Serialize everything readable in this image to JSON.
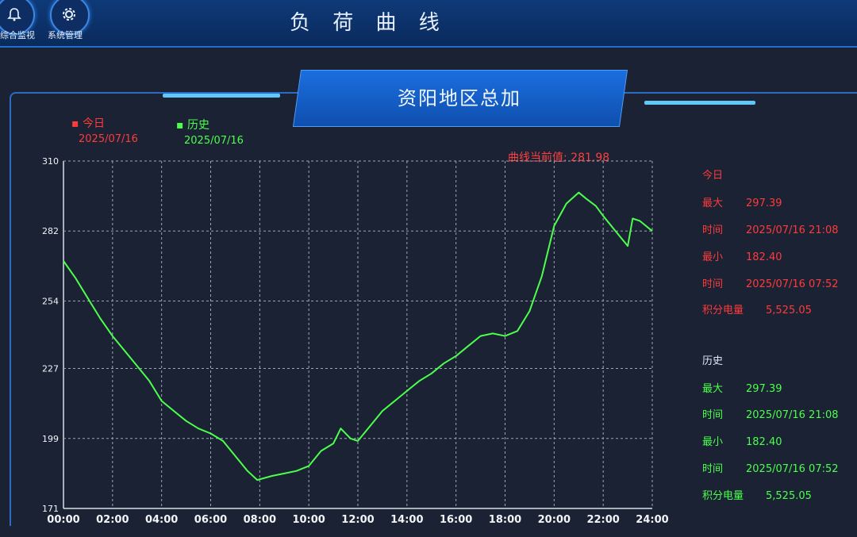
{
  "nav": {
    "items": [
      {
        "label": "综合监视",
        "icon": "bell-icon"
      },
      {
        "label": "系统管理",
        "icon": "gear-icon"
      }
    ]
  },
  "page": {
    "title": "负 荷 曲 线"
  },
  "panel": {
    "title": "资阳地区总加"
  },
  "legend": {
    "today": {
      "label": "今日",
      "date": "2025/07/16",
      "color": "#ff3b3b"
    },
    "history": {
      "label": "历史",
      "date": "2025/07/16",
      "color": "#4cff4c"
    }
  },
  "current": {
    "text": "曲线当前值:  281.98"
  },
  "stats": {
    "today": {
      "title": "今日",
      "max_label": "最大",
      "max_value": "297.39",
      "max_time_label": "时间",
      "max_time": "2025/07/16 21:08",
      "min_label": "最小",
      "min_value": "182.40",
      "min_time_label": "时间",
      "min_time": "2025/07/16 07:52",
      "energy_label": "积分电量",
      "energy_value": "5,525.05"
    },
    "history": {
      "title": "历史",
      "max_label": "最大",
      "max_value": "297.39",
      "max_time_label": "时间",
      "max_time": "2025/07/16 21:08",
      "min_label": "最小",
      "min_value": "182.40",
      "min_time_label": "时间",
      "min_time": "2025/07/16 07:52",
      "energy_label": "积分电量",
      "energy_value": "5,525.05"
    }
  },
  "chart_data": {
    "type": "line",
    "x_ticks": [
      "00:00",
      "02:00",
      "04:00",
      "06:00",
      "08:00",
      "10:00",
      "12:00",
      "14:00",
      "16:00",
      "18:00",
      "20:00",
      "22:00",
      "24:00"
    ],
    "y_ticks": [
      171,
      199,
      227,
      254,
      282,
      310
    ],
    "ylim": [
      171,
      310
    ],
    "xlim_hours": [
      0,
      24
    ],
    "grid": true,
    "series": [
      {
        "name": "历史",
        "color": "#4cff4c",
        "x_hours": [
          0,
          0.5,
          1,
          1.5,
          2,
          2.5,
          3,
          3.5,
          4,
          4.5,
          5,
          5.5,
          6,
          6.5,
          7,
          7.5,
          7.9,
          8.5,
          9,
          9.5,
          10,
          10.5,
          11,
          11.3,
          11.7,
          12,
          12.5,
          13,
          13.5,
          14,
          14.5,
          15,
          15.5,
          16,
          16.5,
          17,
          17.5,
          18,
          18.5,
          19,
          19.5,
          20,
          20.5,
          21,
          21.3,
          21.7,
          22,
          22.5,
          23,
          23.2,
          23.5,
          24
        ],
        "values": [
          270,
          263,
          255,
          247,
          240,
          234,
          228,
          222,
          214,
          210,
          206,
          203,
          201,
          198,
          192,
          186,
          182.4,
          184,
          185,
          186,
          188,
          194,
          197,
          203,
          199,
          198,
          204,
          210,
          214,
          218,
          222,
          225,
          229,
          232,
          236,
          240,
          241,
          240,
          242,
          250,
          264,
          284,
          293,
          297.39,
          295,
          292,
          288,
          282,
          276,
          287,
          286,
          281.98
        ]
      }
    ]
  }
}
